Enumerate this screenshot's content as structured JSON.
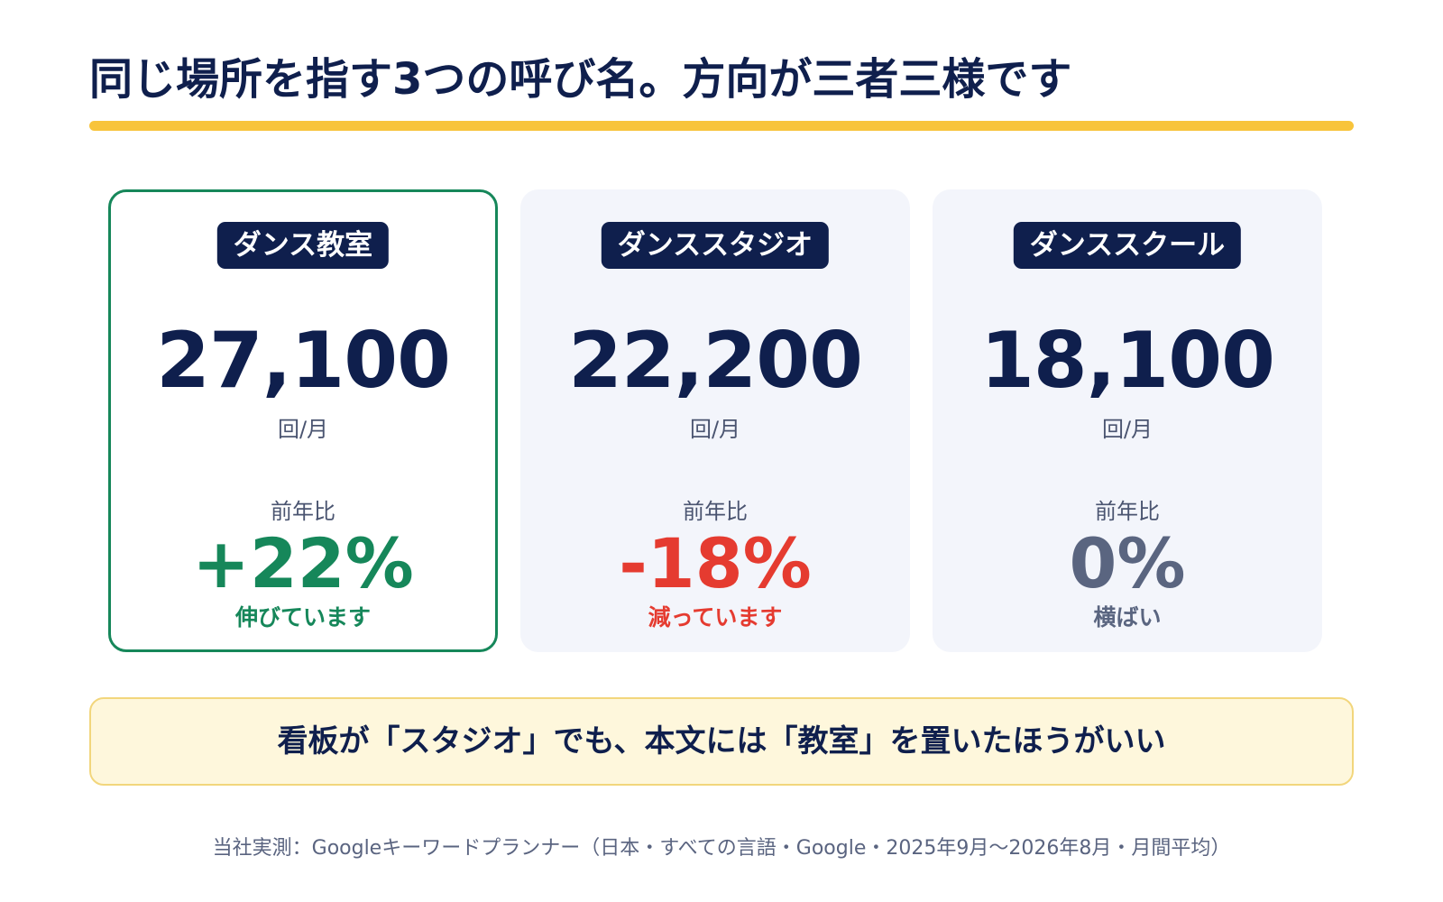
{
  "title": "同じ場所を指す3つの呼び名。方向が三者三様です",
  "colors": {
    "navy": "#0f1f4d",
    "accent_yellow": "#f8c43b",
    "positive_green": "#16875a",
    "negative_red": "#e53b30",
    "neutral_slate": "#5a6580"
  },
  "cards": [
    {
      "term": "ダンス教室",
      "volume": "27,100",
      "unit": "回/月",
      "yoy_label": "前年比",
      "yoy_value": "+22%",
      "yoy_note": "伸びています",
      "trend": "up",
      "highlighted": true
    },
    {
      "term": "ダンススタジオ",
      "volume": "22,200",
      "unit": "回/月",
      "yoy_label": "前年比",
      "yoy_value": "-18%",
      "yoy_note": "減っています",
      "trend": "down",
      "highlighted": false
    },
    {
      "term": "ダンススクール",
      "volume": "18,100",
      "unit": "回/月",
      "yoy_label": "前年比",
      "yoy_value": "0%",
      "yoy_note": "横ばい",
      "trend": "flat",
      "highlighted": false
    }
  ],
  "callout": "看板が「スタジオ」でも、本文には「教室」を置いたほうがいい",
  "source": "当社実測：Googleキーワードプランナー（日本・すべての言語・Google・2025年9月〜2026年8月・月間平均）"
}
